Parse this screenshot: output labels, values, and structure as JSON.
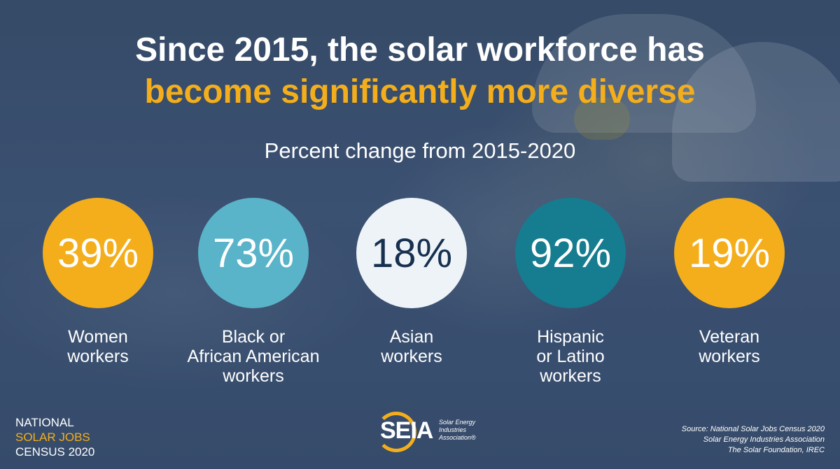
{
  "title": {
    "line1": "Since 2015, the solar workforce has",
    "line2": "become significantly more diverse"
  },
  "subtitle": "Percent change from 2015-2020",
  "colors": {
    "gold": "#f4ae1b",
    "light_blue": "#5ab4c9",
    "white_circle": "#eef3f8",
    "teal": "#167c8f",
    "navy_text": "#16304f",
    "title_gold": "#f4ae1b"
  },
  "chart_data": {
    "type": "bubble-stats",
    "title": "Percent change from 2015-2020",
    "unit": "%",
    "categories": [
      "Women workers",
      "Black or African American workers",
      "Asian workers",
      "Hispanic or Latino workers",
      "Veteran workers"
    ],
    "values": [
      39,
      73,
      18,
      92,
      19
    ],
    "value_labels": [
      "39%",
      "73%",
      "18%",
      "92%",
      "19%"
    ],
    "category_lines": [
      [
        "Women",
        "workers"
      ],
      [
        "Black or",
        "African American",
        "workers"
      ],
      [
        "Asian",
        "workers"
      ],
      [
        "Hispanic",
        "or Latino",
        "workers"
      ],
      [
        "Veteran",
        "workers"
      ]
    ],
    "circle_colors": [
      "#f4ae1b",
      "#5ab4c9",
      "#eef3f8",
      "#167c8f",
      "#f4ae1b"
    ],
    "value_text_colors": [
      "#ffffff",
      "#ffffff",
      "#16304f",
      "#ffffff",
      "#ffffff"
    ]
  },
  "footer": {
    "census_line1": "NATIONAL",
    "census_line2": "SOLAR JOBS",
    "census_line3": "CENSUS 2020",
    "logo_word": "SEIA",
    "logo_sub1": "Solar Energy",
    "logo_sub2": "Industries",
    "logo_sub3": "Association®",
    "source1": "Source: National Solar Jobs Census 2020",
    "source2": "Solar Energy Industries Association",
    "source3": "The Solar Foundation, IREC"
  }
}
